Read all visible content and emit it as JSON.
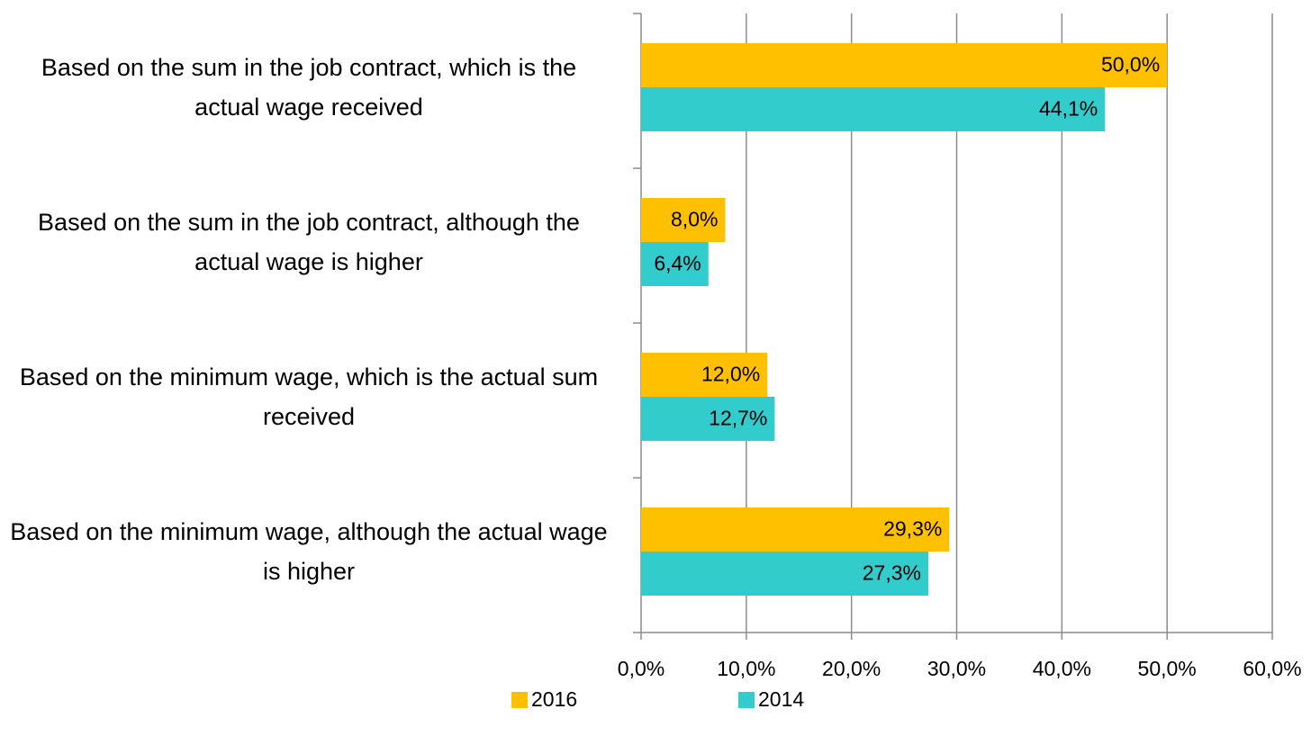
{
  "chart_data": {
    "type": "bar",
    "orientation": "horizontal",
    "categories": [
      "Based on the sum in the job contract, which is the actual wage received",
      "Based on the sum in the job contract, although the actual wage is higher",
      "Based on the minimum wage, which is the actual sum received",
      "Based on the minimum wage, although the actual wage is higher"
    ],
    "series": [
      {
        "name": "2016",
        "color": "#ffc000",
        "values": [
          50.0,
          8.0,
          12.0,
          29.3
        ],
        "value_labels": [
          "50,0%",
          "8,0%",
          "12,0%",
          "29,3%"
        ]
      },
      {
        "name": "2014",
        "color": "#33cccc",
        "values": [
          44.1,
          6.4,
          12.7,
          27.3
        ],
        "value_labels": [
          "44,1%",
          "6,4%",
          "12,7%",
          "27,3%"
        ]
      }
    ],
    "xlim": [
      0,
      60
    ],
    "xticks": [
      {
        "value": 0,
        "label": "0,0%"
      },
      {
        "value": 10,
        "label": "10,0%"
      },
      {
        "value": 20,
        "label": "20,0%"
      },
      {
        "value": 30,
        "label": "30,0%"
      },
      {
        "value": 40,
        "label": "40,0%"
      },
      {
        "value": 50,
        "label": "50,0%"
      },
      {
        "value": 60,
        "label": "60,0%"
      }
    ],
    "grid": true,
    "legend": "bottom"
  }
}
